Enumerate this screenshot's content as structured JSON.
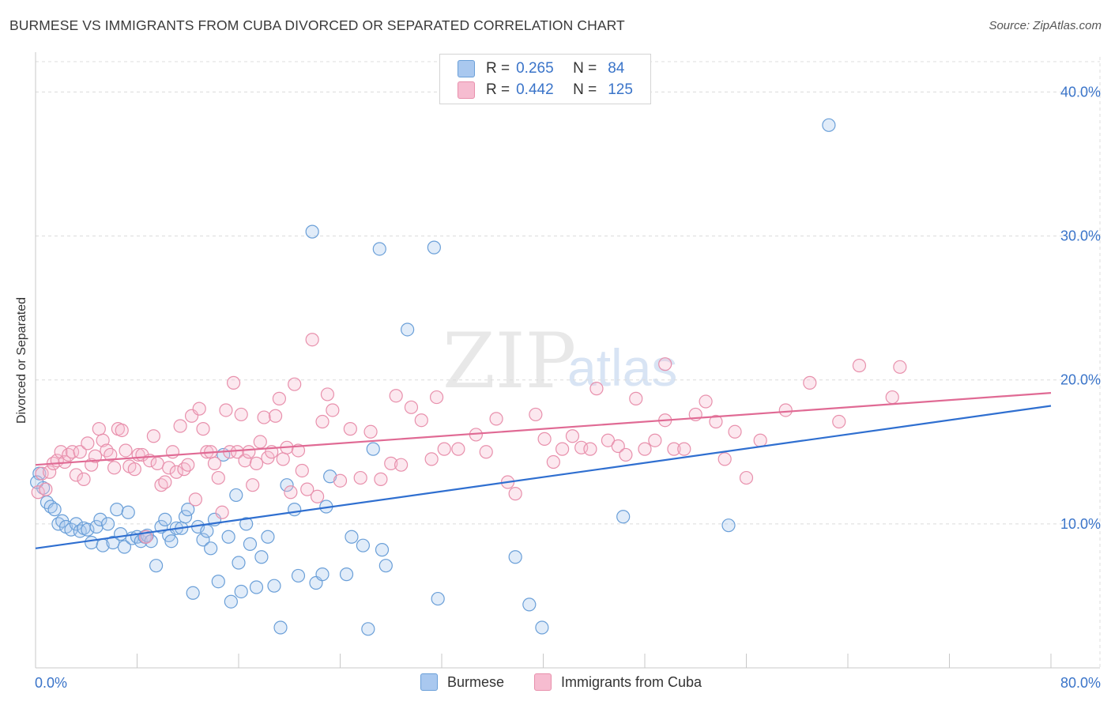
{
  "title": "BURMESE VS IMMIGRANTS FROM CUBA DIVORCED OR SEPARATED CORRELATION CHART",
  "source": "Source: ZipAtlas.com",
  "watermark": {
    "zip": "ZIP",
    "atlas": "atlas"
  },
  "legend_top": {
    "rows": [
      {
        "r_label": "R =",
        "r_value": "0.265",
        "n_label": "N =",
        "n_value": "84",
        "color": "#a9c8ef",
        "border": "#6a9fd8"
      },
      {
        "r_label": "R =",
        "r_value": "0.442",
        "n_label": "N =",
        "n_value": "125",
        "color": "#f6bcd0",
        "border": "#e890ac"
      }
    ]
  },
  "legend_bottom": [
    {
      "label": "Burmese",
      "color": "#a9c8ef",
      "border": "#6a9fd8"
    },
    {
      "label": "Immigrants from Cuba",
      "color": "#f6bcd0",
      "border": "#e890ac"
    }
  ],
  "chart_data": {
    "type": "scatter",
    "title": "BURMESE VS IMMIGRANTS FROM CUBA DIVORCED OR SEPARATED CORRELATION CHART",
    "xlabel": "",
    "ylabel": "Divorced or Separated",
    "xlim": [
      0,
      80
    ],
    "ylim": [
      0,
      42
    ],
    "x_tick_labels": [
      "0.0%",
      "80.0%"
    ],
    "y_ticks": [
      10,
      20,
      30,
      40
    ],
    "y_tick_labels": [
      "10.0%",
      "20.0%",
      "30.0%",
      "40.0%"
    ],
    "grid": true,
    "series": [
      {
        "name": "Burmese",
        "color": "#6a9fd8",
        "fill": "rgba(169,200,239,0.35)",
        "trend": {
          "x": [
            0,
            80
          ],
          "y": [
            8.3,
            18.2
          ],
          "color": "#2f6fd0"
        },
        "points": [
          [
            0.3,
            13.5
          ],
          [
            0.6,
            12.5
          ],
          [
            0.9,
            11.5
          ],
          [
            1.2,
            11.2
          ],
          [
            1.5,
            11
          ],
          [
            1.8,
            10
          ],
          [
            2.1,
            10.2
          ],
          [
            2.4,
            9.8
          ],
          [
            2.8,
            9.6
          ],
          [
            3.2,
            10
          ],
          [
            3.5,
            9.5
          ],
          [
            3.8,
            9.7
          ],
          [
            4.1,
            9.6
          ],
          [
            4.4,
            8.7
          ],
          [
            4.8,
            9.8
          ],
          [
            5.1,
            10.3
          ],
          [
            5.3,
            8.5
          ],
          [
            5.7,
            10
          ],
          [
            6.1,
            8.7
          ],
          [
            6.4,
            11
          ],
          [
            6.7,
            9.3
          ],
          [
            7,
            8.4
          ],
          [
            7.3,
            10.8
          ],
          [
            7.6,
            9
          ],
          [
            8,
            9.1
          ],
          [
            8.3,
            8.8
          ],
          [
            8.6,
            9.1
          ],
          [
            8.8,
            9.2
          ],
          [
            9.1,
            8.8
          ],
          [
            9.5,
            7.1
          ],
          [
            9.9,
            9.8
          ],
          [
            10.2,
            10.3
          ],
          [
            10.5,
            9.2
          ],
          [
            10.7,
            8.8
          ],
          [
            11.1,
            9.7
          ],
          [
            11.5,
            9.7
          ],
          [
            11.8,
            10.5
          ],
          [
            12,
            11
          ],
          [
            12.4,
            5.2
          ],
          [
            12.8,
            9.8
          ],
          [
            13.2,
            8.9
          ],
          [
            13.5,
            9.5
          ],
          [
            13.8,
            8.3
          ],
          [
            14.1,
            10.3
          ],
          [
            14.4,
            6
          ],
          [
            14.8,
            14.8
          ],
          [
            15.2,
            9.1
          ],
          [
            15.4,
            4.6
          ],
          [
            15.8,
            12
          ],
          [
            16,
            7.3
          ],
          [
            16.2,
            5.3
          ],
          [
            16.6,
            10
          ],
          [
            16.9,
            8.6
          ],
          [
            17.4,
            5.6
          ],
          [
            17.8,
            7.7
          ],
          [
            18.3,
            9.1
          ],
          [
            18.8,
            5.7
          ],
          [
            19.3,
            2.8
          ],
          [
            19.8,
            12.7
          ],
          [
            20.4,
            11
          ],
          [
            20.7,
            6.4
          ],
          [
            21.8,
            30.3
          ],
          [
            22.1,
            5.9
          ],
          [
            22.6,
            6.5
          ],
          [
            22.9,
            11.2
          ],
          [
            23.2,
            13.3
          ],
          [
            24.5,
            6.5
          ],
          [
            24.9,
            9.1
          ],
          [
            25.8,
            8.5
          ],
          [
            26.2,
            2.7
          ],
          [
            26.6,
            15.2
          ],
          [
            27.1,
            29.1
          ],
          [
            27.3,
            8.2
          ],
          [
            27.6,
            7.1
          ],
          [
            29.3,
            23.5
          ],
          [
            31.4,
            29.2
          ],
          [
            31.7,
            4.8
          ],
          [
            37.8,
            7.7
          ],
          [
            38.9,
            4.4
          ],
          [
            39.9,
            2.8
          ],
          [
            46.3,
            10.5
          ],
          [
            54.6,
            9.9
          ],
          [
            62.5,
            37.7
          ],
          [
            0.1,
            12.9
          ]
        ]
      },
      {
        "name": "Immigrants from Cuba",
        "color": "#e890ac",
        "fill": "rgba(246,188,208,0.35)",
        "trend": {
          "x": [
            0,
            80
          ],
          "y": [
            14.1,
            19.1
          ],
          "color": "#e06a94"
        },
        "points": [
          [
            0.2,
            12.2
          ],
          [
            0.5,
            13.5
          ],
          [
            0.8,
            12.4
          ],
          [
            1.1,
            13.6
          ],
          [
            1.4,
            14.2
          ],
          [
            1.7,
            14.4
          ],
          [
            2,
            15
          ],
          [
            2.3,
            14.3
          ],
          [
            2.6,
            14.8
          ],
          [
            2.9,
            15
          ],
          [
            3.2,
            13.4
          ],
          [
            3.5,
            15
          ],
          [
            3.8,
            13.1
          ],
          [
            4.1,
            15.6
          ],
          [
            4.4,
            14.1
          ],
          [
            4.7,
            14.7
          ],
          [
            5,
            16.6
          ],
          [
            5.3,
            15.8
          ],
          [
            5.6,
            15.1
          ],
          [
            5.9,
            14.8
          ],
          [
            6.2,
            13.9
          ],
          [
            6.5,
            16.6
          ],
          [
            6.8,
            16.5
          ],
          [
            7.1,
            15.1
          ],
          [
            7.4,
            14
          ],
          [
            7.8,
            13.8
          ],
          [
            8.1,
            14.8
          ],
          [
            8.4,
            14.8
          ],
          [
            8.7,
            9.1
          ],
          [
            9,
            14.4
          ],
          [
            9.3,
            16.1
          ],
          [
            9.6,
            14.2
          ],
          [
            9.9,
            12.7
          ],
          [
            10.2,
            12.9
          ],
          [
            10.5,
            13.9
          ],
          [
            10.8,
            15
          ],
          [
            11.1,
            13.6
          ],
          [
            11.4,
            16.8
          ],
          [
            11.7,
            13.8
          ],
          [
            12,
            14.1
          ],
          [
            12.3,
            17.5
          ],
          [
            12.6,
            11.7
          ],
          [
            12.9,
            18
          ],
          [
            13.2,
            16.6
          ],
          [
            13.5,
            15
          ],
          [
            13.8,
            15
          ],
          [
            14.1,
            14.2
          ],
          [
            14.4,
            13.2
          ],
          [
            14.7,
            10.8
          ],
          [
            15,
            17.9
          ],
          [
            15.3,
            15
          ],
          [
            15.6,
            19.8
          ],
          [
            15.9,
            15
          ],
          [
            16.2,
            17.6
          ],
          [
            16.5,
            14.4
          ],
          [
            16.8,
            15
          ],
          [
            17.1,
            12.7
          ],
          [
            17.4,
            14.2
          ],
          [
            17.7,
            15.7
          ],
          [
            18,
            17.4
          ],
          [
            18.3,
            14.6
          ],
          [
            18.6,
            15
          ],
          [
            18.9,
            17.5
          ],
          [
            19.2,
            18.7
          ],
          [
            19.5,
            14.5
          ],
          [
            19.8,
            15.3
          ],
          [
            20.1,
            12.2
          ],
          [
            20.4,
            19.7
          ],
          [
            20.7,
            15.1
          ],
          [
            21,
            13.7
          ],
          [
            21.4,
            12.4
          ],
          [
            21.8,
            22.8
          ],
          [
            22.2,
            11.9
          ],
          [
            22.6,
            17.1
          ],
          [
            23,
            19
          ],
          [
            23.4,
            17.9
          ],
          [
            24,
            13
          ],
          [
            24.8,
            16.6
          ],
          [
            25.6,
            13.2
          ],
          [
            26.4,
            16.4
          ],
          [
            27.2,
            13.1
          ],
          [
            28,
            14.2
          ],
          [
            28.4,
            18.9
          ],
          [
            29.6,
            18.1
          ],
          [
            30.4,
            17.2
          ],
          [
            31.2,
            14.5
          ],
          [
            31.6,
            18.8
          ],
          [
            32.2,
            15.2
          ],
          [
            33.3,
            15.2
          ],
          [
            34.7,
            16.2
          ],
          [
            35.5,
            15
          ],
          [
            36.3,
            17.3
          ],
          [
            37.2,
            12.9
          ],
          [
            37.8,
            12.1
          ],
          [
            39.4,
            17.6
          ],
          [
            40.1,
            15.9
          ],
          [
            40.8,
            14.3
          ],
          [
            41.5,
            15.2
          ],
          [
            42.3,
            16.1
          ],
          [
            43,
            15.3
          ],
          [
            43.7,
            15.2
          ],
          [
            44.2,
            19.4
          ],
          [
            45.1,
            15.8
          ],
          [
            45.9,
            15.4
          ],
          [
            46.5,
            14.8
          ],
          [
            47.3,
            18.7
          ],
          [
            48,
            15.2
          ],
          [
            48.8,
            15.8
          ],
          [
            49.6,
            17.2
          ],
          [
            50.3,
            15.2
          ],
          [
            51.1,
            15.2
          ],
          [
            52,
            17.6
          ],
          [
            52.8,
            18.5
          ],
          [
            53.6,
            17.1
          ],
          [
            54.3,
            14.5
          ],
          [
            55.1,
            16.4
          ],
          [
            56,
            13.2
          ],
          [
            57.1,
            15.8
          ],
          [
            59.1,
            17.9
          ],
          [
            61,
            19.8
          ],
          [
            63.3,
            17.1
          ],
          [
            64.9,
            21
          ],
          [
            67.5,
            18.8
          ],
          [
            68.1,
            20.9
          ],
          [
            49.6,
            21.1
          ],
          [
            28.8,
            14.1
          ]
        ]
      }
    ]
  }
}
